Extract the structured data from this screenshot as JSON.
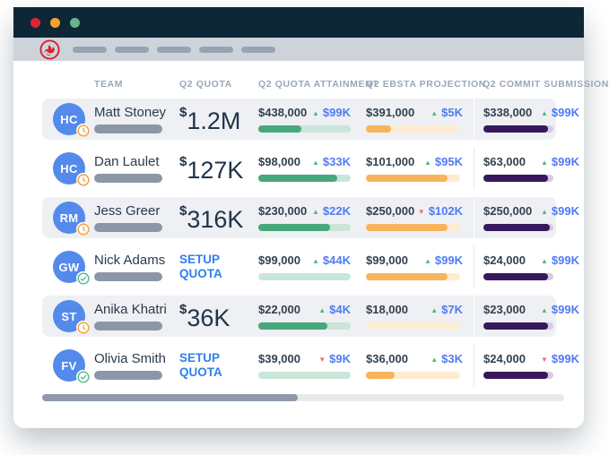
{
  "window": {
    "traffic_light_colors": [
      "#e02438",
      "#f4a42c",
      "#67b58d"
    ]
  },
  "nav": {
    "logo_name": "ebsta-logo",
    "placeholder_count": 5
  },
  "table": {
    "headers": [
      "TEAM",
      "Q2 QUOTA",
      "Q2 QUOTA ATTAINMENT",
      "Q2 EBSTA PROJECTION",
      "Q2 COMMIT SUBMISSION"
    ],
    "setup_quota_label": "SETUP QUOTA",
    "rows": [
      {
        "initials": "HC",
        "badge": "clock",
        "name": "Matt Stoney",
        "quota": "$1.2M",
        "attainment": {
          "value": "$438,000",
          "delta": "$99K",
          "direction": "up",
          "fill_pct": 47
        },
        "projection": {
          "value": "$391,000",
          "delta": "$5K",
          "direction": "up",
          "fill_pct": 27
        },
        "commit": {
          "value": "$338,000",
          "delta": "$99K",
          "direction": "up",
          "fill_pct": 92
        }
      },
      {
        "initials": "HC",
        "badge": "clock",
        "name": "Dan Laulet",
        "quota": "$127K",
        "attainment": {
          "value": "$98,000",
          "delta": "$33K",
          "direction": "up",
          "fill_pct": 85
        },
        "projection": {
          "value": "$101,000",
          "delta": "$95K",
          "direction": "up",
          "fill_pct": 87
        },
        "commit": {
          "value": "$63,000",
          "delta": "$99K",
          "direction": "up",
          "fill_pct": 92
        }
      },
      {
        "initials": "RM",
        "badge": "clock",
        "name": "Jess Greer",
        "quota": "$316K",
        "attainment": {
          "value": "$230,000",
          "delta": "$22K",
          "direction": "up",
          "fill_pct": 78
        },
        "projection": {
          "value": "$250,000",
          "delta": "$102K",
          "direction": "down",
          "fill_pct": 87
        },
        "commit": {
          "value": "$250,000",
          "delta": "$99K",
          "direction": "up",
          "fill_pct": 95
        }
      },
      {
        "initials": "GW",
        "badge": "check",
        "name": "Nick Adams",
        "quota": null,
        "attainment": {
          "value": "$99,000",
          "delta": "$44K",
          "direction": "up",
          "fill_pct": 0
        },
        "projection": {
          "value": "$99,000",
          "delta": "$99K",
          "direction": "up",
          "fill_pct": 87
        },
        "commit": {
          "value": "$24,000",
          "delta": "$99K",
          "direction": "up",
          "fill_pct": 92
        }
      },
      {
        "initials": "ST",
        "badge": "clock",
        "name": "Anika Khatri",
        "quota": "$36K",
        "attainment": {
          "value": "$22,000",
          "delta": "$4K",
          "direction": "up",
          "fill_pct": 75
        },
        "projection": {
          "value": "$18,000",
          "delta": "$7K",
          "direction": "up",
          "fill_pct": 0
        },
        "commit": {
          "value": "$23,000",
          "delta": "$99K",
          "direction": "up",
          "fill_pct": 92
        }
      },
      {
        "initials": "FV",
        "badge": "check",
        "name": "Olivia Smith",
        "quota": null,
        "attainment": {
          "value": "$39,000",
          "delta": "$9K",
          "direction": "down",
          "fill_pct": 0
        },
        "projection": {
          "value": "$36,000",
          "delta": "$3K",
          "direction": "up",
          "fill_pct": 30
        },
        "commit": {
          "value": "$24,000",
          "delta": "$99K",
          "direction": "down",
          "fill_pct": 92
        }
      }
    ]
  },
  "colors": {
    "titlebar": "#0d2737",
    "navbar": "#ced3da",
    "pill": "#97a4b3",
    "logo_red": "#dc1f2e",
    "row_shade": "#eef0f4",
    "avatar_blue": "#538aec",
    "placeholder": "#8b97a7",
    "quota_text": "#203449",
    "setup_blue": "#2f80ed",
    "delta_blue": "#4f7bf3",
    "green": "#53b586",
    "green_fill": "#47a87c",
    "green_track": "#c9e6d8",
    "orange": "#f8b45c",
    "orange_track": "#fdecd1",
    "purple": "#38185c",
    "purple_track": "#d5cde0",
    "red": "#ef6a7e",
    "divider": "#e2e6eb",
    "scroll_track": "#e8eaee",
    "scroll_thumb": "#8e9aaa"
  }
}
